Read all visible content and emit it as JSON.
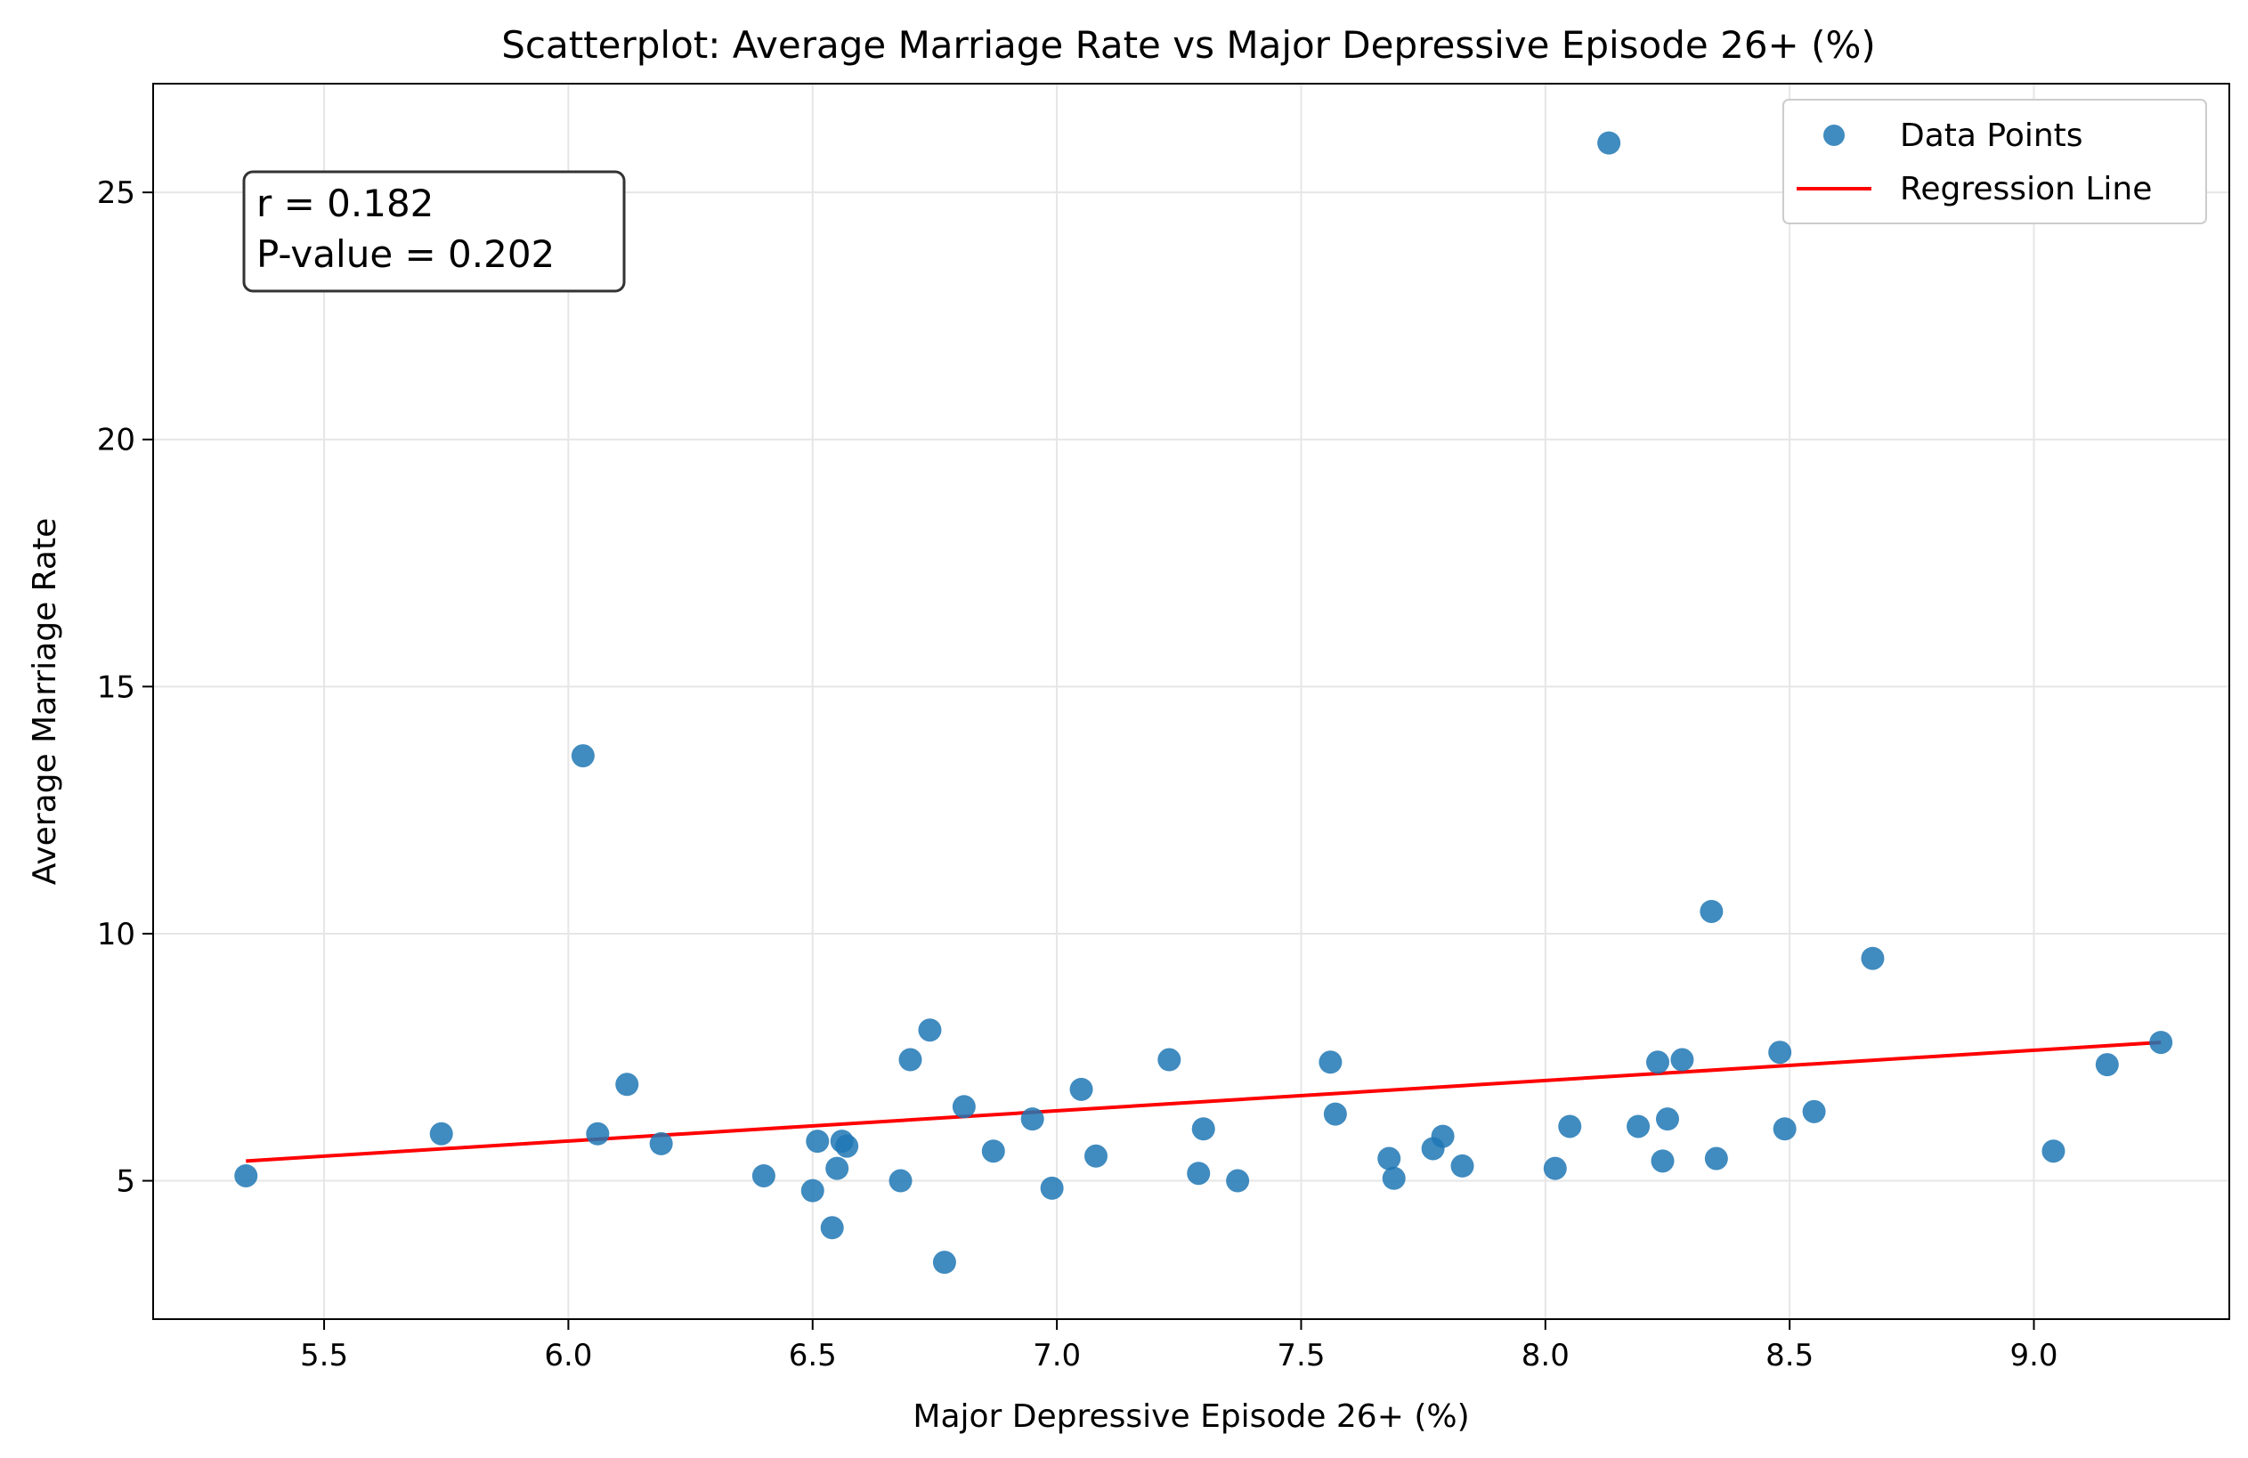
{
  "chart_data": {
    "type": "scatter",
    "title": "Scatterplot: Average Marriage Rate vs Major Depressive Episode 26+ (%)",
    "xlabel": "Major Depressive Episode 26+ (%)",
    "ylabel": "Average Marriage Rate",
    "xlim": [
      5.15,
      9.4
    ],
    "ylim": [
      2.2,
      27.2
    ],
    "x_ticks": [
      5.5,
      6.0,
      6.5,
      7.0,
      7.5,
      8.0,
      8.5,
      9.0
    ],
    "x_tick_labels": [
      "5.5",
      "6.0",
      "6.5",
      "7.0",
      "7.5",
      "8.0",
      "8.5",
      "9.0"
    ],
    "y_ticks": [
      5,
      10,
      15,
      20,
      25
    ],
    "y_tick_labels": [
      "5",
      "10",
      "15",
      "20",
      "25"
    ],
    "grid": true,
    "legend_position": "top-right",
    "annotation": {
      "line1": "r = 0.182",
      "line2": "P-value = 0.202"
    },
    "series": [
      {
        "name": "Data Points",
        "kind": "scatter",
        "color": "#1f77b4",
        "points": [
          [
            5.34,
            5.1
          ],
          [
            5.74,
            5.95
          ],
          [
            6.03,
            13.6
          ],
          [
            6.06,
            5.95
          ],
          [
            6.12,
            6.95
          ],
          [
            6.19,
            5.75
          ],
          [
            6.4,
            5.1
          ],
          [
            6.5,
            4.8
          ],
          [
            6.51,
            5.8
          ],
          [
            6.54,
            4.05
          ],
          [
            6.55,
            5.25
          ],
          [
            6.56,
            5.8
          ],
          [
            6.57,
            5.7
          ],
          [
            6.68,
            5.0
          ],
          [
            6.7,
            7.45
          ],
          [
            6.74,
            8.05
          ],
          [
            6.77,
            3.35
          ],
          [
            6.81,
            6.5
          ],
          [
            6.87,
            5.6
          ],
          [
            6.95,
            6.25
          ],
          [
            6.99,
            4.85
          ],
          [
            7.05,
            6.85
          ],
          [
            7.08,
            5.5
          ],
          [
            7.23,
            7.45
          ],
          [
            7.29,
            5.15
          ],
          [
            7.3,
            6.05
          ],
          [
            7.37,
            5.0
          ],
          [
            7.56,
            7.4
          ],
          [
            7.57,
            6.35
          ],
          [
            7.68,
            5.45
          ],
          [
            7.69,
            5.05
          ],
          [
            7.77,
            5.65
          ],
          [
            7.79,
            5.9
          ],
          [
            7.83,
            5.3
          ],
          [
            8.02,
            5.25
          ],
          [
            8.05,
            6.1
          ],
          [
            8.13,
            26.0
          ],
          [
            8.19,
            6.1
          ],
          [
            8.23,
            7.4
          ],
          [
            8.24,
            5.4
          ],
          [
            8.25,
            6.25
          ],
          [
            8.28,
            7.45
          ],
          [
            8.34,
            10.45
          ],
          [
            8.35,
            5.45
          ],
          [
            8.48,
            7.6
          ],
          [
            8.49,
            6.05
          ],
          [
            8.55,
            6.4
          ],
          [
            8.67,
            9.5
          ],
          [
            9.04,
            5.6
          ],
          [
            9.15,
            7.35
          ],
          [
            9.26,
            7.8
          ]
        ]
      },
      {
        "name": "Regression Line",
        "kind": "line",
        "color": "#ff0000",
        "points": [
          [
            5.34,
            5.4
          ],
          [
            9.26,
            7.8
          ]
        ]
      }
    ]
  }
}
